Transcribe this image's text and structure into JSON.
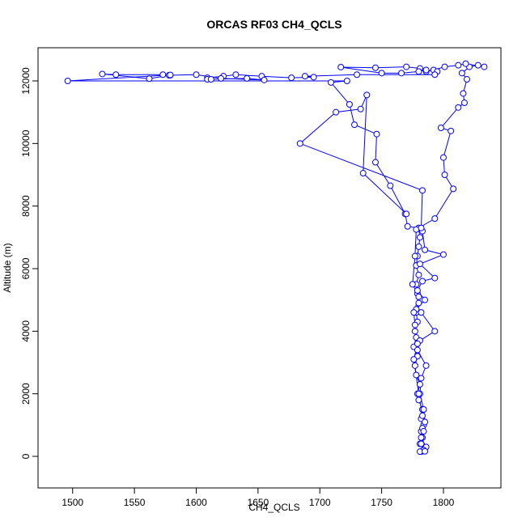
{
  "chart_data": {
    "type": "line",
    "title": "ORCAS RF03 CH4_QCLS",
    "xlabel": "CH4_QCLS",
    "ylabel": "Altitude (m)",
    "color": "#0000ff",
    "markers": true,
    "xlim": [
      1472,
      1846.5
    ],
    "ylim": [
      -1009,
      13060
    ],
    "xticks": [
      1500,
      1550,
      1600,
      1650,
      1700,
      1750,
      1800
    ],
    "yticks": [
      0,
      2000,
      4000,
      6000,
      8000,
      10000,
      12000
    ],
    "x": [
      1782,
      1784,
      1781,
      1783,
      1782,
      1784,
      1782,
      1783,
      1780,
      1779,
      1781,
      1778,
      1777,
      1779,
      1776,
      1778,
      1777,
      1779,
      1778,
      1780,
      1779,
      1778,
      1780,
      1778,
      1779,
      1780,
      1781,
      1780,
      1793,
      1808,
      1801,
      1800,
      1806,
      1798,
      1812,
      1817,
      1816,
      1819,
      1815,
      1821,
      1828,
      1833,
      1818,
      1812,
      1801,
      1792,
      1786,
      1781,
      1770,
      1745,
      1717,
      1750,
      1766,
      1780,
      1786,
      1795,
      1793,
      1730,
      1688,
      1695,
      1677,
      1653,
      1632,
      1622,
      1609,
      1609,
      1612,
      1641,
      1655,
      1620,
      1600,
      1579,
      1573,
      1535,
      1524,
      1562,
      1578,
      1579,
      1496,
      1722,
      1709,
      1724,
      1728,
      1746,
      1745,
      1757,
      1769,
      1771,
      1780,
      1783,
      1785,
      1800,
      1781,
      1793,
      1783,
      1779,
      1785,
      1778,
      1782,
      1793,
      1781,
      1779,
      1786,
      1782,
      1781,
      1784,
      1785,
      1783,
      1782,
      1786,
      1784,
      1781,
      1785,
      1782,
      1784,
      1783,
      1780,
      1776,
      1779,
      1777,
      1776,
      1780,
      1775,
      1777,
      1778,
      1782,
      1783,
      1684,
      1713,
      1733,
      1738,
      1735,
      1770
    ],
    "values": [
      150,
      200,
      400,
      600,
      800,
      1000,
      1200,
      1500,
      1800,
      2000,
      2300,
      2600,
      2900,
      3200,
      3500,
      3800,
      4000,
      4300,
      4600,
      4900,
      5200,
      5500,
      5800,
      6100,
      6400,
      6700,
      7000,
      7300,
      7600,
      8550,
      9000,
      9550,
      10400,
      10500,
      11150,
      11300,
      11600,
      12050,
      12250,
      12450,
      12500,
      12450,
      12550,
      12500,
      12450,
      12350,
      12300,
      12400,
      12450,
      12420,
      12440,
      12250,
      12250,
      12300,
      12350,
      12300,
      12200,
      12200,
      12150,
      12120,
      12100,
      12150,
      12200,
      12150,
      12100,
      12050,
      12050,
      12080,
      12030,
      12080,
      12200,
      12180,
      12200,
      12200,
      12220,
      12070,
      12180,
      12190,
      12000,
      12000,
      11950,
      11250,
      10600,
      10300,
      9400,
      8650,
      7750,
      7350,
      7300,
      7200,
      6600,
      6450,
      6150,
      5700,
      5600,
      5300,
      5000,
      4700,
      4600,
      4000,
      3700,
      3400,
      2900,
      2500,
      2000,
      1500,
      1100,
      900,
      600,
      300,
      200,
      150,
      160,
      400,
      800,
      1300,
      2000,
      3100,
      3600,
      4200,
      4600,
      5100,
      5500,
      6400,
      7250,
      7300,
      8500,
      10000,
      11000,
      11100,
      11550,
      9050,
      7750
    ]
  }
}
